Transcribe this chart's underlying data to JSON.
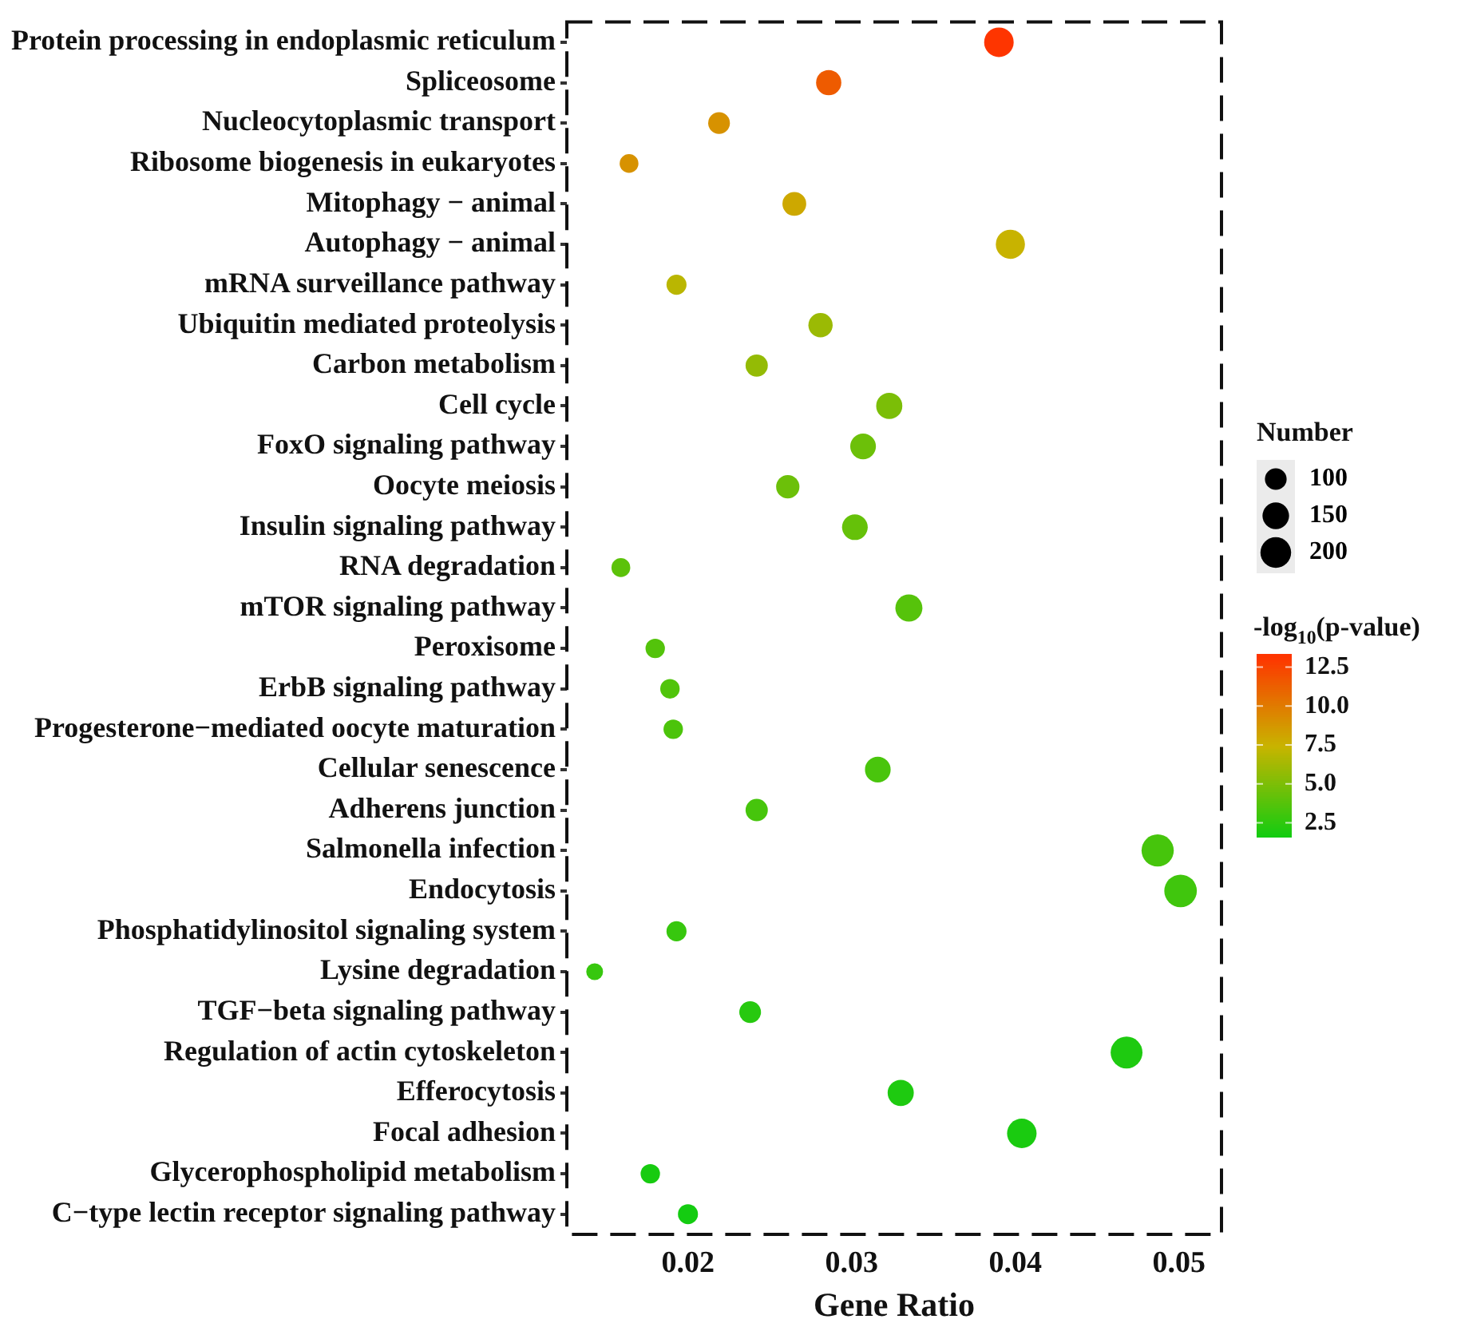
{
  "chart_data": {
    "type": "bubble",
    "xlabel": "Gene Ratio",
    "clabel": "-log$_{10}$(p-value)",
    "legend_title": "Number",
    "categories": [
      "Protein processing in endoplasmic reticulum",
      "Spliceosome",
      "Nucleocytoplasmic transport",
      "Ribosome biogenesis in eukaryotes",
      "Mitophagy − animal",
      "Autophagy − animal",
      "mRNA surveillance pathway",
      "Ubiquitin mediated proteolysis",
      "Carbon metabolism",
      "Cell cycle",
      "FoxO signaling pathway",
      "Oocyte meiosis",
      "Insulin signaling pathway",
      "RNA degradation",
      "mTOR signaling pathway",
      "Peroxisome",
      "ErbB signaling pathway",
      "Progesterone−mediated oocyte maturation",
      "Cellular senescence",
      "Adherens junction",
      "Salmonella infection",
      "Endocytosis",
      "Phosphatidylinositol signaling system",
      "Lysine degradation",
      "TGF−beta signaling pathway",
      "Regulation of actin cytoskeleton",
      "Efferocytosis",
      "Focal adhesion",
      "Glycerophospholipid metabolism",
      "C−type lectin receptor signaling pathway"
    ],
    "values": [
      0.039,
      0.0286,
      0.0219,
      0.0164,
      0.0265,
      0.0397,
      0.0193,
      0.0281,
      0.0242,
      0.0323,
      0.0307,
      0.0261,
      0.0302,
      0.0159,
      0.0335,
      0.018,
      0.0189,
      0.0191,
      0.0316,
      0.0242,
      0.0487,
      0.0501,
      0.0193,
      0.0143,
      0.0238,
      0.0468,
      0.033,
      0.0404,
      0.0177,
      0.02
    ],
    "sizes": [
      185,
      135,
      100,
      75,
      120,
      180,
      85,
      125,
      105,
      145,
      140,
      115,
      140,
      75,
      155,
      80,
      80,
      80,
      140,
      105,
      220,
      225,
      85,
      60,
      100,
      215,
      145,
      185,
      80,
      85
    ],
    "size_legend": [
      100,
      150,
      200
    ],
    "cvalues": [
      13.2,
      11.5,
      9,
      9,
      8,
      7.5,
      7,
      6,
      5.8,
      5,
      4.5,
      4.5,
      4.3,
      4,
      3.8,
      3.7,
      3.6,
      3.5,
      3.4,
      3.3,
      3.3,
      3.1,
      2.8,
      2.8,
      2.3,
      2,
      2,
      1.9,
      1.8,
      1.7
    ],
    "clim": [
      1.6,
      13.3
    ],
    "cticks": [
      2.5,
      {
        "value": 5,
        "label": "5.0"
      },
      7.5,
      {
        "value": 10,
        "label": "10.0"
      },
      12.5
    ],
    "xlim": [
      0.0126,
      0.0526
    ],
    "xticks": [
      0.02,
      0.03,
      0.04,
      0.05
    ],
    "orientation": "horizontal",
    "grid": false
  }
}
